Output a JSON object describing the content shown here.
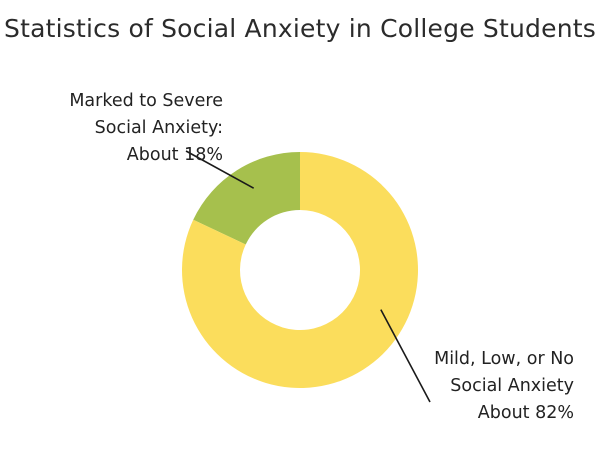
{
  "chart_data": {
    "type": "pie",
    "style": "donut",
    "title": "Statistics of Social Anxiety in College Students",
    "slices": [
      {
        "label_lines": [
          "Marked to Severe",
          "Social Anxiety:",
          "About 18%"
        ],
        "value": 18,
        "color": "#a6c04d"
      },
      {
        "label_lines": [
          "Mild, Low, or No",
          "Social Anxiety",
          "About 82%"
        ],
        "value": 82,
        "color": "#fbdd5c"
      }
    ],
    "legend": "none"
  }
}
